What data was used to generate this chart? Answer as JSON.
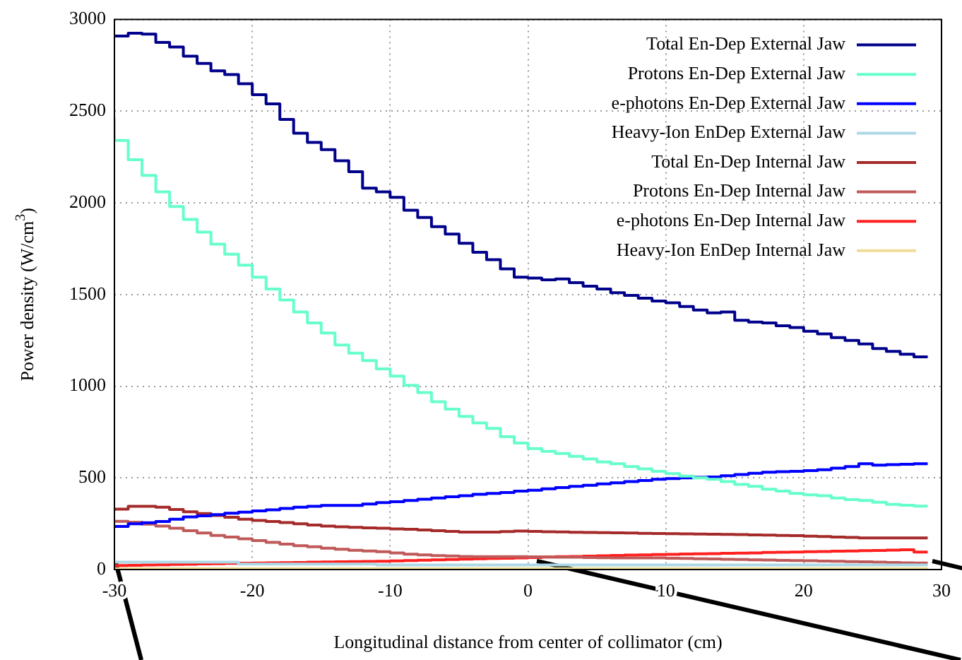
{
  "chart_data": {
    "type": "step",
    "xlabel": "Longitudinal distance from center of collimator (cm)",
    "ylabel": "Power density (W/cm$^{3}$)",
    "x": [
      -30,
      -29,
      -28,
      -27,
      -26,
      -25,
      -24,
      -23,
      -22,
      -21,
      -20,
      -19,
      -18,
      -17,
      -16,
      -15,
      -14,
      -13,
      -12,
      -11,
      -10,
      -9,
      -8,
      -7,
      -6,
      -5,
      -4,
      -3,
      -2,
      -1,
      0,
      1,
      2,
      3,
      4,
      5,
      6,
      7,
      8,
      9,
      10,
      11,
      12,
      13,
      14,
      15,
      16,
      17,
      18,
      19,
      20,
      21,
      22,
      23,
      24,
      25,
      26,
      27,
      28,
      29
    ],
    "xlim": [
      -30,
      30
    ],
    "xticks": [
      -30,
      -20,
      -10,
      0,
      10,
      20,
      30
    ],
    "ylim": [
      0,
      3000
    ],
    "yticks": [
      0,
      500,
      1000,
      1500,
      2000,
      2500,
      3000
    ],
    "grid": true,
    "legend": "top right",
    "marker": "none",
    "series": [
      {
        "name": "Total En-Dep External Jaw",
        "color": "#00008b",
        "values": [
          2910,
          2910,
          2925,
          2920,
          2875,
          2850,
          2800,
          2760,
          2720,
          2700,
          2650,
          2590,
          2540,
          2455,
          2380,
          2330,
          2290,
          2230,
          2170,
          2080,
          2060,
          2030,
          1960,
          1920,
          1870,
          1830,
          1780,
          1730,
          1690,
          1640,
          1595,
          1590,
          1580,
          1585,
          1565,
          1545,
          1530,
          1510,
          1495,
          1480,
          1465,
          1455,
          1435,
          1415,
          1400,
          1405,
          1360,
          1350,
          1345,
          1330,
          1320,
          1300,
          1285,
          1265,
          1250,
          1230,
          1205,
          1190,
          1175,
          1160
        ]
      },
      {
        "name": "Protons En-Dep External Jaw",
        "color": "#66ffcc",
        "values": [
          2465,
          2340,
          2235,
          2150,
          2060,
          1980,
          1910,
          1840,
          1775,
          1720,
          1660,
          1595,
          1530,
          1470,
          1405,
          1345,
          1290,
          1225,
          1180,
          1140,
          1095,
          1055,
          1005,
          965,
          915,
          875,
          835,
          800,
          770,
          725,
          690,
          660,
          645,
          633,
          618,
          603,
          587,
          577,
          562,
          549,
          536,
          523,
          510,
          500,
          492,
          480,
          464,
          454,
          438,
          428,
          415,
          408,
          403,
          390,
          382,
          377,
          367,
          356,
          351,
          346
        ]
      },
      {
        "name": "e-photons En-Dep External Jaw",
        "color": "#0000ff",
        "values": [
          228,
          235,
          250,
          255,
          262,
          275,
          287,
          293,
          300,
          307,
          313,
          320,
          326,
          333,
          340,
          345,
          350,
          350,
          350,
          357,
          365,
          370,
          377,
          383,
          390,
          397,
          403,
          410,
          415,
          420,
          428,
          433,
          440,
          447,
          454,
          460,
          467,
          473,
          480,
          486,
          492,
          496,
          500,
          503,
          505,
          512,
          518,
          525,
          531,
          534,
          536,
          540,
          544,
          553,
          562,
          577,
          569,
          572,
          574,
          577
        ]
      },
      {
        "name": "Heavy-Ion EnDep External Jaw",
        "color": "#add8e6",
        "values": [
          40,
          40,
          40,
          40,
          40,
          40,
          40,
          40,
          40,
          40,
          30,
          30,
          30,
          30,
          30,
          30,
          30,
          30,
          30,
          30,
          25,
          25,
          25,
          25,
          25,
          25,
          25,
          25,
          25,
          25,
          25,
          25,
          25,
          25,
          25,
          25,
          25,
          25,
          25,
          25,
          25,
          25,
          25,
          25,
          25,
          25,
          25,
          25,
          25,
          25,
          25,
          25,
          25,
          25,
          25,
          25,
          25,
          25,
          25,
          25
        ]
      },
      {
        "name": "Total En-Dep Internal Jaw",
        "color": "#a52a2a",
        "values": [
          320,
          330,
          345,
          345,
          340,
          328,
          315,
          305,
          295,
          285,
          275,
          268,
          262,
          256,
          250,
          243,
          237,
          233,
          230,
          227,
          225,
          222,
          220,
          216,
          212,
          208,
          204,
          204,
          204,
          207,
          210,
          208,
          206,
          205,
          203,
          202,
          201,
          200,
          199,
          198,
          197,
          196,
          195,
          194,
          193,
          192,
          191,
          189,
          188,
          186,
          185,
          182,
          180,
          177,
          175,
          172,
          172,
          172,
          172,
          172
        ]
      },
      {
        "name": "Protons En-Dep Internal Jaw",
        "color": "#c05a5a",
        "values": [
          268,
          263,
          258,
          248,
          237,
          225,
          212,
          199,
          186,
          177,
          168,
          158,
          148,
          139,
          130,
          124,
          117,
          111,
          105,
          101,
          97,
          91,
          84,
          80,
          76,
          74,
          71,
          70,
          70,
          70,
          70,
          69,
          68,
          67,
          67,
          66,
          65,
          64,
          64,
          64,
          64,
          62,
          61,
          59,
          58,
          56,
          55,
          53,
          52,
          50,
          49,
          48,
          46,
          45,
          43,
          42,
          40,
          39,
          37,
          36
        ]
      },
      {
        "name": "e-photons En-Dep Internal Jaw",
        "color": "#ff2020",
        "values": [
          20,
          22,
          23,
          25,
          26,
          28,
          29,
          31,
          32,
          34,
          35,
          36,
          37,
          38,
          39,
          40,
          41,
          42,
          43,
          44,
          45,
          47,
          49,
          51,
          53,
          55,
          57,
          59,
          61,
          62,
          64,
          66,
          68,
          70,
          71,
          73,
          75,
          77,
          79,
          80,
          82,
          83,
          85,
          86,
          87,
          89,
          90,
          91,
          93,
          94,
          95,
          97,
          98,
          100,
          101,
          103,
          104,
          106,
          108,
          95
        ]
      },
      {
        "name": "Heavy-Ion EnDep Internal Jaw",
        "color": "#f0dc96",
        "values": [
          5,
          5,
          5,
          5,
          5,
          5,
          5,
          5,
          5,
          5,
          5,
          5,
          5,
          5,
          5,
          5,
          5,
          5,
          5,
          5,
          5,
          5,
          5,
          5,
          5,
          5,
          5,
          5,
          5,
          5,
          5,
          5,
          5,
          5,
          5,
          5,
          5,
          5,
          5,
          5,
          5,
          5,
          5,
          5,
          5,
          5,
          5,
          5,
          5,
          5,
          5,
          5,
          5,
          5,
          5,
          5,
          5,
          5,
          5,
          5
        ]
      }
    ]
  }
}
